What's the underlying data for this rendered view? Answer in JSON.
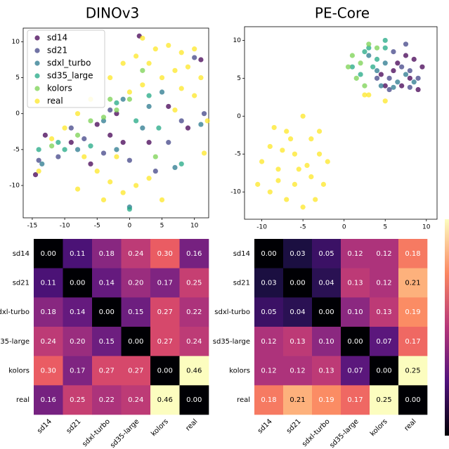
{
  "chart_data": [
    {
      "type": "scatter",
      "title": "DINOv3",
      "legend": "upper left",
      "xlim": [
        -16.4,
        12.2
      ],
      "ylim": [
        -14.5,
        11.9
      ],
      "xticks": [
        -15,
        -10,
        -5,
        0,
        5,
        10
      ],
      "yticks": [
        -10,
        -5,
        0,
        5,
        10
      ],
      "series": [
        {
          "name": "sd14",
          "color": "#440154",
          "x": [
            -14.5,
            -13,
            -9,
            -5,
            -3,
            1.5,
            3,
            6,
            -1,
            9,
            -6,
            11,
            -2
          ],
          "y": [
            -8.5,
            -3,
            -4,
            -1.5,
            -3,
            10.8,
            -4,
            1,
            -4,
            -2,
            -7,
            7.5,
            0
          ]
        },
        {
          "name": "sd21",
          "color": "#414487",
          "x": [
            -14,
            -11,
            -7,
            -3,
            0,
            4,
            6,
            8,
            10,
            11.5,
            -4,
            -9
          ],
          "y": [
            -6.5,
            -6,
            -3.5,
            0.5,
            -6.5,
            -8,
            -4,
            -1,
            7.8,
            0,
            -5.5,
            -2
          ]
        },
        {
          "name": "sdxl_turbo",
          "color": "#2a788e",
          "x": [
            -13.5,
            -8,
            -4,
            -1,
            0,
            3,
            5,
            7,
            11,
            -2,
            2
          ],
          "y": [
            -7,
            -5,
            -1,
            2,
            -13,
            1,
            3,
            -7.5,
            -1.5,
            -5,
            -2
          ]
        },
        {
          "name": "sd35_large",
          "color": "#22a884",
          "x": [
            -14,
            -10,
            -6,
            -2,
            0,
            3,
            4.5,
            8,
            -11,
            1
          ],
          "y": [
            -5,
            -5,
            -4.5,
            1.5,
            -13.3,
            2.5,
            -2,
            -7,
            -4,
            -1
          ]
        },
        {
          "name": "kolors",
          "color": "#7ad151",
          "x": [
            -12,
            -8,
            -4,
            -2,
            0,
            2,
            4,
            -6,
            -3
          ],
          "y": [
            -4.5,
            -3,
            -0.5,
            0.5,
            2,
            6,
            -6,
            -1,
            2
          ]
        },
        {
          "name": "real",
          "color": "#fde725",
          "x": [
            2,
            4,
            6,
            8,
            10,
            -1,
            1,
            3,
            7,
            9,
            11,
            5,
            2,
            8,
            10,
            0,
            -3,
            -6,
            -8,
            -10,
            -12,
            -7,
            -5,
            -3,
            -1,
            1,
            3,
            -8,
            5,
            -4,
            11.5,
            -14,
            12,
            7,
            -2
          ],
          "y": [
            10.5,
            9,
            9.5,
            8.5,
            9,
            7,
            8,
            7,
            6,
            6.5,
            5,
            5,
            4,
            3.5,
            2.5,
            3,
            5,
            2,
            0,
            -2,
            -3.5,
            -6,
            -8,
            -9.5,
            -11,
            -10,
            -9,
            -10.5,
            -12,
            -12,
            -5.5,
            -8,
            -1,
            0.5,
            -6
          ]
        }
      ]
    },
    {
      "type": "scatter",
      "title": "PE-Core",
      "xlim": [
        -12.1,
        11.3
      ],
      "ylim": [
        -13.6,
        11.8
      ],
      "xticks": [
        -10,
        -5,
        0,
        5,
        10
      ],
      "yticks": [
        -10,
        -5,
        0,
        5,
        10
      ],
      "series": [
        {
          "name": "sd14",
          "color": "#440154",
          "x": [
            6,
            8,
            9,
            7.5,
            5,
            4.5,
            9.5,
            7,
            6.5,
            8.5
          ],
          "y": [
            6,
            5,
            3.5,
            8,
            4,
            5.5,
            6.5,
            4,
            7,
            7.5
          ]
        },
        {
          "name": "sd21",
          "color": "#414487",
          "x": [
            5.5,
            7,
            8,
            6,
            4,
            9,
            7.5,
            5.5,
            8
          ],
          "y": [
            5,
            6.5,
            3.8,
            8.5,
            5,
            5,
            9.5,
            3.5,
            6
          ]
        },
        {
          "name": "sdxl_turbo",
          "color": "#2a788e",
          "x": [
            4,
            5,
            6.5,
            7.5,
            3,
            8.5,
            6,
            4.5
          ],
          "y": [
            6,
            7,
            4.5,
            5.5,
            8,
            4.5,
            3.8,
            4
          ]
        },
        {
          "name": "sd35_large",
          "color": "#22a884",
          "x": [
            3,
            4,
            5,
            1,
            2,
            3.5,
            5,
            2.5
          ],
          "y": [
            9,
            7.5,
            10,
            6.5,
            5.5,
            6.5,
            9,
            8.5
          ]
        },
        {
          "name": "kolors",
          "color": "#7ad151",
          "x": [
            1,
            2,
            3,
            1.5,
            2.5,
            0.5,
            4
          ],
          "y": [
            8,
            7,
            9.5,
            5,
            4,
            6.5,
            9
          ]
        },
        {
          "name": "real",
          "color": "#fde725",
          "x": [
            -5,
            -7,
            -4,
            -3,
            -9,
            -10,
            -8,
            -6,
            -4,
            -2.5,
            -7,
            -5,
            -9,
            -6,
            -3,
            -8,
            -4.5,
            -10.5,
            -7.5,
            -5.5,
            -3.5,
            -2,
            -8.5,
            -6.5,
            2.5,
            5,
            3
          ],
          "y": [
            0,
            -2,
            -3,
            -5,
            -4,
            -6,
            -7,
            -9,
            -8,
            -9,
            -11,
            -12,
            -10,
            -5,
            -2,
            -8.5,
            -6.5,
            -9,
            -4.5,
            -7,
            -11,
            -6,
            -1.5,
            -3,
            2.8,
            2,
            2.8
          ]
        }
      ]
    },
    {
      "type": "heatmap",
      "colormap": "magma",
      "categories": [
        "sd14",
        "sd21",
        "sdxl-turbo",
        "sd35-large",
        "kolors",
        "real"
      ],
      "values": [
        [
          0,
          0.11,
          0.18,
          0.24,
          0.3,
          0.16
        ],
        [
          0.11,
          0,
          0.14,
          0.2,
          0.17,
          0.25
        ],
        [
          0.18,
          0.14,
          0,
          0.15,
          0.27,
          0.22
        ],
        [
          0.24,
          0.2,
          0.15,
          0,
          0.27,
          0.24
        ],
        [
          0.3,
          0.17,
          0.27,
          0.27,
          0,
          0.46
        ],
        [
          0.16,
          0.25,
          0.22,
          0.24,
          0.46,
          0
        ]
      ],
      "value_labels": [
        [
          "0.00",
          "0.11",
          "0.18",
          "0.24",
          "0.30",
          "0.16"
        ],
        [
          "0.11",
          "0.00",
          "0.14",
          "0.20",
          "0.17",
          "0.25"
        ],
        [
          "0.18",
          "0.14",
          "0.00",
          "0.15",
          "0.27",
          "0.22"
        ],
        [
          "0.24",
          "0.20",
          "0.15",
          "0.00",
          "0.27",
          "0.24"
        ],
        [
          "0.30",
          "0.17",
          "0.27",
          "0.27",
          "0.00",
          "0.46"
        ],
        [
          "0.16",
          "0.25",
          "0.22",
          "0.24",
          "0.46",
          "0.00"
        ]
      ]
    },
    {
      "type": "heatmap",
      "colormap": "magma",
      "categories": [
        "sd14",
        "sd21",
        "sdxl-turbo",
        "sd35-large",
        "kolors",
        "real"
      ],
      "values": [
        [
          0,
          0.03,
          0.05,
          0.12,
          0.12,
          0.18
        ],
        [
          0.03,
          0,
          0.04,
          0.13,
          0.12,
          0.21
        ],
        [
          0.05,
          0.04,
          0,
          0.1,
          0.13,
          0.19
        ],
        [
          0.12,
          0.13,
          0.1,
          0,
          0.07,
          0.17
        ],
        [
          0.12,
          0.12,
          0.13,
          0.07,
          0,
          0.25
        ],
        [
          0.18,
          0.21,
          0.19,
          0.17,
          0.25,
          0
        ]
      ],
      "value_labels": [
        [
          "0.00",
          "0.03",
          "0.05",
          "0.12",
          "0.12",
          "0.18"
        ],
        [
          "0.03",
          "0.00",
          "0.04",
          "0.13",
          "0.12",
          "0.21"
        ],
        [
          "0.05",
          "0.04",
          "0.00",
          "0.10",
          "0.13",
          "0.19"
        ],
        [
          "0.12",
          "0.13",
          "0.10",
          "0.00",
          "0.07",
          "0.17"
        ],
        [
          "0.12",
          "0.12",
          "0.13",
          "0.07",
          "0.00",
          "0.25"
        ],
        [
          "0.18",
          "0.21",
          "0.19",
          "0.17",
          "0.25",
          "0.00"
        ]
      ]
    }
  ]
}
